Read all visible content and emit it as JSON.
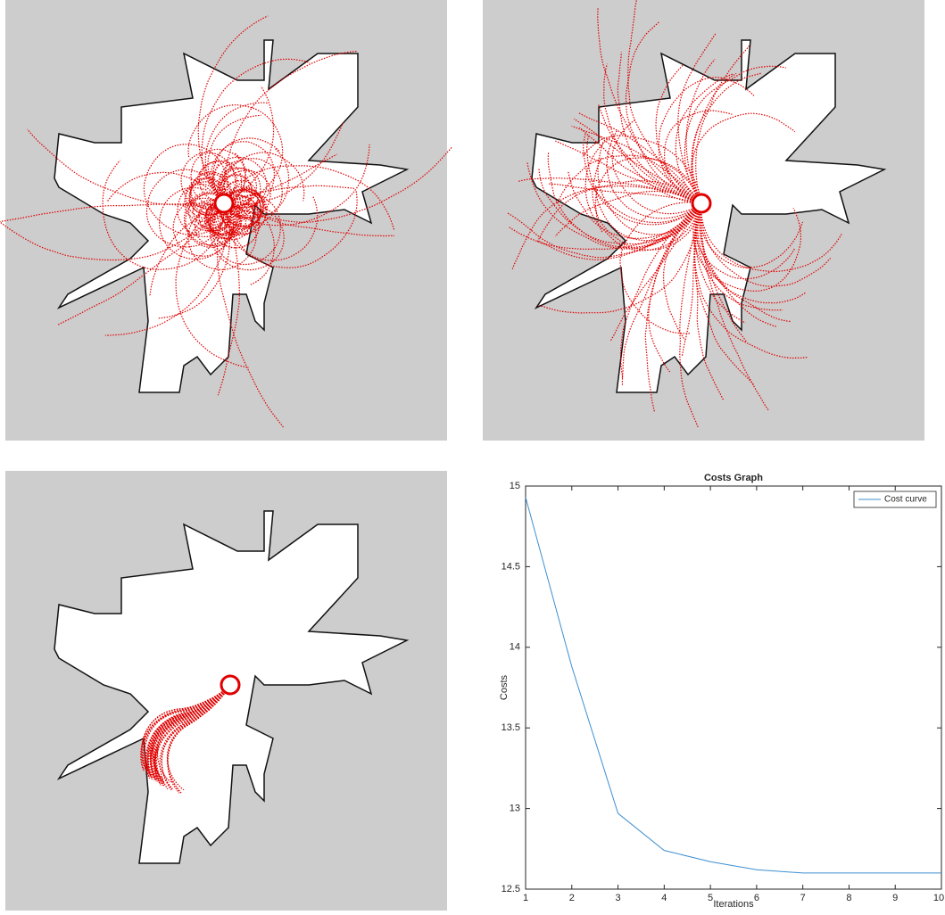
{
  "chart_data": {
    "type": "line",
    "title": "Costs Graph",
    "x_label": "Iterations",
    "y_label": "Costs",
    "x": [
      1,
      2,
      3,
      4,
      5,
      6,
      7,
      8,
      9,
      10
    ],
    "series": [
      {
        "name": "Cost curve",
        "color": "#3d8fd1",
        "values": [
          14.93,
          13.88,
          12.97,
          12.74,
          12.67,
          12.62,
          12.6,
          12.6,
          12.6,
          12.6
        ]
      }
    ],
    "xlim": [
      1,
      10
    ],
    "xticks": [
      1,
      2,
      3,
      4,
      5,
      6,
      7,
      8,
      9,
      10
    ],
    "ylim": [
      12.5,
      15
    ],
    "yticks": [
      12.5,
      13,
      13.5,
      14,
      14.5,
      15
    ],
    "grid": false,
    "legend": "upper-right"
  }
}
